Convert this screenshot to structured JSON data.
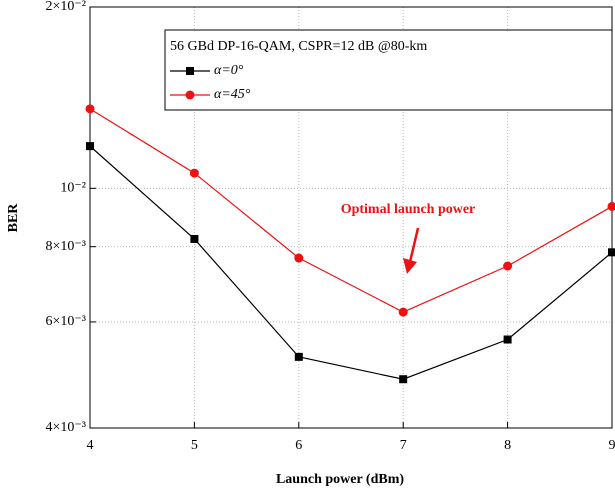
{
  "chart_data": {
    "type": "line",
    "legend_title": "56 GBd DP-16-QAM, CSPR=12 dB @80-km",
    "annotation": "Optimal launch power",
    "x_label": "Launch power (dBm)",
    "y_label": "BER",
    "x": [
      4,
      5,
      6,
      7,
      8,
      9
    ],
    "series": [
      {
        "name": "α=0°",
        "color": "#000000",
        "marker": "square",
        "values": [
          0.01175,
          0.00824,
          0.00525,
          0.00482,
          0.00561,
          0.00783
        ]
      },
      {
        "name": "α=45°",
        "color": "#ee1111",
        "marker": "circle",
        "values": [
          0.01355,
          0.0106,
          0.00766,
          0.00623,
          0.00743,
          0.00933
        ]
      }
    ],
    "xlim": [
      4,
      9
    ],
    "xticks": [
      4,
      5,
      6,
      7,
      8,
      9
    ],
    "ylim": [
      0.004,
      0.02
    ],
    "log_y": true,
    "yticks": [
      {
        "value": 0.004,
        "label": "4×10⁻³"
      },
      {
        "value": 0.006,
        "label": "6×10⁻³"
      },
      {
        "value": 0.008,
        "label": "8×10⁻³"
      },
      {
        "value": 0.01,
        "label": "10⁻²"
      },
      {
        "value": 0.02,
        "label": "2×10⁻²"
      }
    ],
    "grid": true
  }
}
